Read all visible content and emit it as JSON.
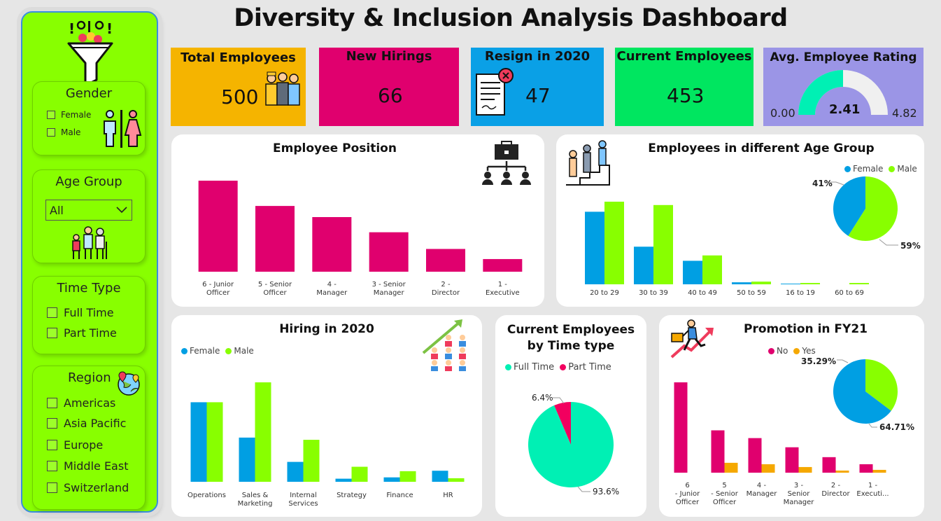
{
  "header": {
    "title": "Diversity & Inclusion Analysis Dashboard"
  },
  "colors": {
    "female": "#009fe3",
    "male": "#88ff00",
    "position": "#e0006e",
    "yes": "#f5a800",
    "full_time": "#00f0b4",
    "part_time": "#f2005f"
  },
  "icons": [
    "funnel-icon",
    "gender-icon",
    "family-icon",
    "globe-pin-icon",
    "workers-icon",
    "document-reject-icon",
    "briefcase-org-icon",
    "people-stairs-icon",
    "growth-people-icon",
    "runner-chart-icon",
    "chevron-down-icon"
  ],
  "filters": {
    "gender": {
      "title": "Gender",
      "options": [
        "Female",
        "Male"
      ]
    },
    "age_group": {
      "title": "Age Group",
      "selected": "All"
    },
    "time_type": {
      "title": "Time Type",
      "options": [
        "Full Time",
        "Part Time"
      ]
    },
    "region": {
      "title": "Region",
      "options": [
        "Americas",
        "Asia Pacific",
        "Europe",
        "Middle East",
        "Switzerland"
      ]
    }
  },
  "kpis": {
    "total_employees": {
      "label": "Total Employees",
      "value": "500"
    },
    "new_hirings": {
      "label": "New Hirings",
      "value": "66"
    },
    "resign_2020": {
      "label": "Resign in 2020",
      "value": "47"
    },
    "current_employees": {
      "label": "Current Employees",
      "value": "453"
    },
    "avg_rating": {
      "label": "Avg. Employee Rating",
      "value": 2.41,
      "value_label": "2.41",
      "min_label": "0.00",
      "max_label": "4.82",
      "min": 0,
      "max": 4.82
    }
  },
  "chart_data": [
    {
      "id": "employee_position",
      "type": "bar",
      "title": "Employee Position",
      "categories": [
        "6 - Junior Officer",
        "5 - Senior Officer",
        "4 - Manager",
        "3 - Senior Manager",
        "2 - Director",
        "1 - Executive"
      ],
      "values": [
        180,
        130,
        108,
        78,
        45,
        25
      ]
    },
    {
      "id": "age_group",
      "type": "bar",
      "title": "Employees in different Age Group",
      "categories": [
        "20 to 29",
        "30 to 39",
        "40 to 49",
        "50 to 59",
        "16 to 19",
        "60 to 69"
      ],
      "series": [
        {
          "name": "Female",
          "values": [
            108,
            56,
            35,
            3,
            1,
            0
          ]
        },
        {
          "name": "Male",
          "values": [
            123,
            118,
            43,
            4,
            2,
            2
          ]
        }
      ],
      "pie": {
        "Female": 41,
        "Male": 59,
        "labels": [
          "41%",
          "59%"
        ]
      }
    },
    {
      "id": "hiring_2020",
      "type": "bar",
      "title": "Hiring in 2020",
      "categories": [
        "Operations",
        "Sales & Marketing",
        "Internal Services",
        "Strategy",
        "Finance",
        "HR"
      ],
      "series": [
        {
          "name": "Female",
          "values": [
            18,
            10,
            4.5,
            0.7,
            1,
            2.5
          ]
        },
        {
          "name": "Male",
          "values": [
            18,
            22.5,
            9.5,
            3.4,
            2.4,
            0.8
          ]
        }
      ]
    },
    {
      "id": "time_type",
      "type": "pie",
      "title": "Current Employees by Time type",
      "legend": [
        "Full Time",
        "Part Time"
      ],
      "slices": [
        {
          "name": "Full Time",
          "value": 93.6,
          "label": "93.6%"
        },
        {
          "name": "Part Time",
          "value": 6.4,
          "label": "6.4%"
        }
      ]
    },
    {
      "id": "promotion_fy21",
      "type": "bar",
      "title": "Promotion in FY21",
      "categories": [
        "6 - Junior Officer",
        "5 - Senior Officer",
        "4 - Manager",
        "3 - Senior Manager",
        "2 - Director",
        "1 - Executi..."
      ],
      "series": [
        {
          "name": "No",
          "values": [
            128,
            60,
            49,
            36,
            22,
            12
          ]
        },
        {
          "name": "Yes",
          "values": [
            0,
            14,
            12,
            8,
            3,
            4
          ]
        }
      ],
      "pie": {
        "No": 35.29,
        "Yes": 64.71,
        "labels": [
          "35.29%",
          "64.71%"
        ]
      }
    }
  ]
}
